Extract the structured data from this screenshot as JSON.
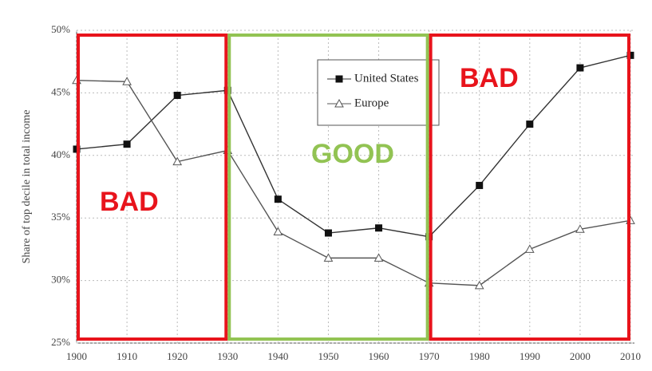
{
  "chart_data": {
    "type": "line",
    "y_label": "Share of top decile in total income",
    "x": [
      1900,
      1910,
      1920,
      1930,
      1940,
      1950,
      1960,
      1970,
      1980,
      1990,
      2000,
      2010
    ],
    "series": [
      {
        "name": "United States",
        "color": "#333333",
        "marker": "square",
        "values": [
          40.5,
          40.9,
          44.8,
          45.2,
          36.5,
          33.8,
          34.2,
          33.5,
          37.6,
          42.5,
          47.0,
          48.0
        ]
      },
      {
        "name": "Europe",
        "color": "#555555",
        "marker": "triangle",
        "values": [
          46.0,
          45.9,
          39.5,
          40.4,
          33.9,
          31.8,
          31.8,
          29.8,
          29.6,
          32.5,
          34.1,
          34.8
        ]
      }
    ],
    "xlim": [
      1900,
      2010
    ],
    "xticks": [
      1900,
      1910,
      1920,
      1930,
      1940,
      1950,
      1960,
      1970,
      1980,
      1990,
      2000,
      2010
    ],
    "ylim": [
      25,
      50
    ],
    "yticks": [
      {
        "value": 25,
        "label": "25%"
      },
      {
        "value": 30,
        "label": "30%"
      },
      {
        "value": 35,
        "label": "35%"
      },
      {
        "value": 40,
        "label": "40%"
      },
      {
        "value": 45,
        "label": "45%"
      },
      {
        "value": 50,
        "label": "50%"
      }
    ],
    "grid": true,
    "legend": "top-center",
    "regions": [
      {
        "label": "BAD",
        "from": 1900,
        "to": 1930,
        "color": "#e8141c"
      },
      {
        "label": "GOOD",
        "from": 1930,
        "to": 1970,
        "color": "#92c353"
      },
      {
        "label": "BAD",
        "from": 1970,
        "to": 2010,
        "color": "#e8141c"
      }
    ]
  }
}
